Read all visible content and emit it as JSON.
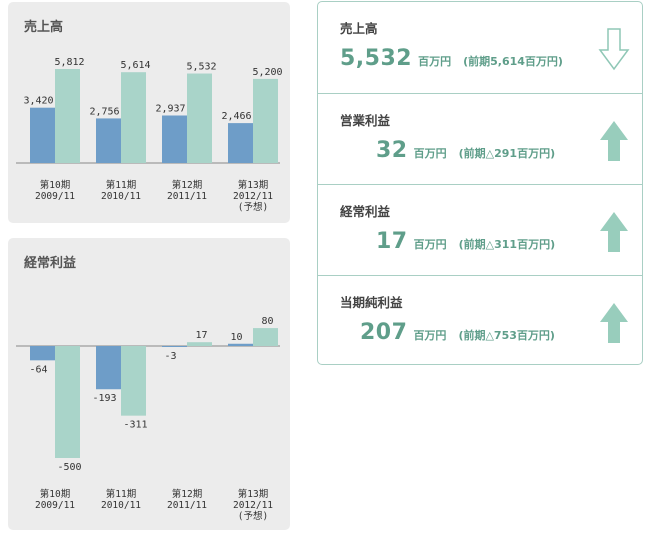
{
  "chart_data": [
    {
      "type": "bar",
      "title": "売上高",
      "categories": [
        [
          "第10期",
          "2009/11"
        ],
        [
          "第11期",
          "2010/11"
        ],
        [
          "第12期",
          "2011/11"
        ],
        [
          "第13期",
          "2012/11",
          "(予想)"
        ]
      ],
      "series": [
        {
          "values": [
            3420,
            2756,
            2937,
            2466
          ],
          "labels": [
            "3,420",
            "2,756",
            "2,937",
            "2,466"
          ],
          "color": "#6e9dc8"
        },
        {
          "values": [
            5812,
            5614,
            5532,
            5200
          ],
          "labels": [
            "5,812",
            "5,614",
            "5,532",
            "5,200"
          ],
          "color": "#a9d4c9"
        }
      ],
      "ylim": [
        0,
        6000
      ],
      "grid": false
    },
    {
      "type": "bar",
      "title": "経常利益",
      "categories": [
        [
          "第10期",
          "2009/11"
        ],
        [
          "第11期",
          "2010/11"
        ],
        [
          "第12期",
          "2011/11"
        ],
        [
          "第13期",
          "2012/11",
          "(予想)"
        ]
      ],
      "series": [
        {
          "values": [
            -64,
            -193,
            -3,
            10
          ],
          "labels": [
            "-64",
            "-193",
            "-3",
            "10"
          ],
          "color": "#6e9dc8"
        },
        {
          "values": [
            -500,
            -311,
            17,
            80
          ],
          "labels": [
            "-500",
            "-311",
            "17",
            "80"
          ],
          "color": "#a9d4c9"
        }
      ],
      "ylim": [
        -500,
        80
      ],
      "grid": false
    }
  ],
  "summary": {
    "accent_color": "#5f9e8a",
    "rows": [
      {
        "title": "売上高",
        "value": "5,532",
        "unit": "百万円",
        "previous": "(前期5,614百万円)",
        "trend": "down"
      },
      {
        "title": "営業利益",
        "value": "32",
        "unit": "百万円",
        "previous": "(前期△291百万円)",
        "trend": "up"
      },
      {
        "title": "経常利益",
        "value": "17",
        "unit": "百万円",
        "previous": "(前期△311百万円)",
        "trend": "up"
      },
      {
        "title": "当期純利益",
        "value": "207",
        "unit": "百万円",
        "previous": "(前期△753百万円)",
        "trend": "up"
      }
    ]
  }
}
